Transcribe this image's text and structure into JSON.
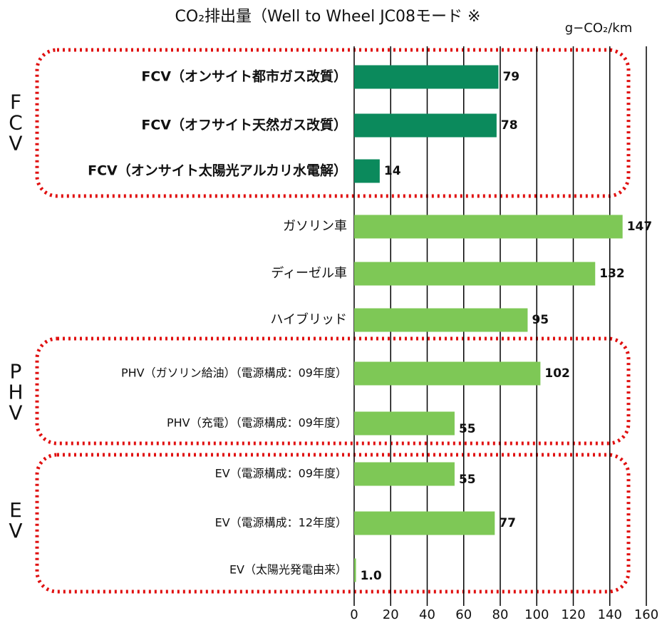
{
  "chart_data": {
    "type": "barh",
    "title": "CO₂排出量（Well to Wheel JC08モード ※",
    "unit_label": "g−CO₂/km",
    "categories": [
      "FCV（オンサイト都市ガス改質）",
      "FCV（オフサイト天然ガス改質）",
      "FCV（オンサイト太陽光アルカリ水電解）",
      "ガソリン車",
      "ディーゼル車",
      "ハイブリッド",
      "PHV（ガソリン給油）（電源構成：09年度）",
      "PHV（充電）（電源構成：09年度）",
      "EV（電源構成：09年度）",
      "EV（電源構成：12年度）",
      "EV（太陽光発電由来）"
    ],
    "values": [
      79,
      78,
      14,
      147,
      132,
      95,
      102,
      55,
      55,
      77,
      1.0
    ],
    "value_labels": [
      "79",
      "78",
      "14",
      "147",
      "132",
      "95",
      "102",
      "55",
      "55",
      "77",
      "1.0"
    ],
    "colors": [
      "#0b8a5c",
      "#0b8a5c",
      "#0b8a5c",
      "#7ec856",
      "#7ec856",
      "#7ec856",
      "#7ec856",
      "#7ec856",
      "#7ec856",
      "#7ec856",
      "#7ec856"
    ],
    "groups": [
      "FCV",
      "PHV",
      "EV"
    ],
    "xlim": [
      0,
      160
    ],
    "xticks": [
      0,
      20,
      40,
      60,
      80,
      100,
      120,
      140,
      160
    ],
    "grid": true
  }
}
